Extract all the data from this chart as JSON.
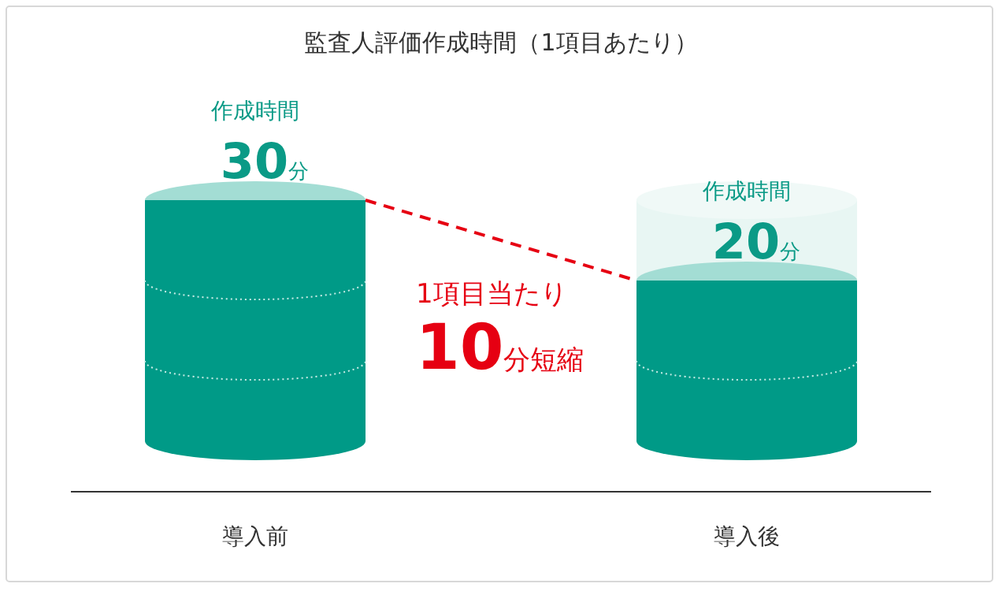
{
  "chart_data": {
    "type": "bar",
    "title": "監査人評価作成時間（1項目あたり）",
    "categories": [
      "導入前",
      "導入後"
    ],
    "series": [
      {
        "color": "#009a87",
        "values": [
          30,
          20
        ],
        "value_labels": [
          "30分",
          "20分"
        ]
      }
    ],
    "annotations": [
      "作成時間",
      "作成時間",
      "1項目当たり",
      "10分短縮"
    ]
  }
}
